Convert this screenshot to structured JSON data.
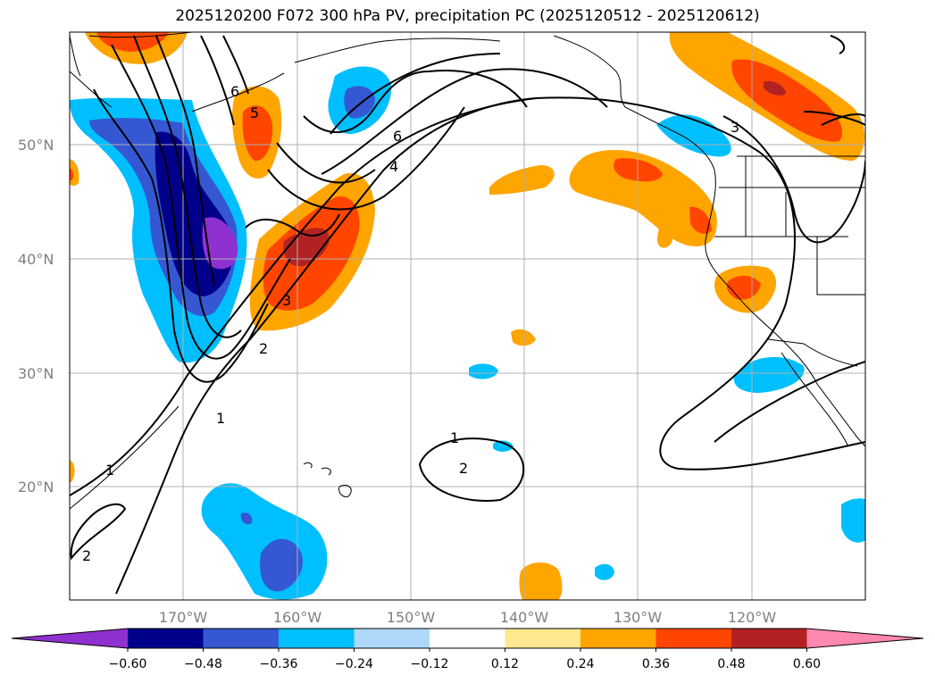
{
  "title": "2025120200 F072 300 hPa PV, precipitation PC (2025120512 - 2025120612)",
  "map": {
    "lat_labels": [
      "50°N",
      "40°N",
      "30°N",
      "20°N"
    ],
    "lon_labels": [
      "170°W",
      "160°W",
      "150°W",
      "140°W",
      "130°W",
      "120°W"
    ],
    "pv_contour_labels": [
      "6",
      "5",
      "3",
      "6",
      "4",
      "2",
      "1",
      "1",
      "2",
      "1",
      "2",
      "3"
    ]
  },
  "colorbar": {
    "ticks": [
      "−0.60",
      "−0.48",
      "−0.36",
      "−0.24",
      "−0.12",
      "0.12",
      "0.24",
      "0.36",
      "0.48",
      "0.60"
    ],
    "colors": [
      "#8f30d0",
      "#00008b",
      "#3558d2",
      "#00bfff",
      "#add8f9",
      "#ffffff",
      "#ffe890",
      "#ffa500",
      "#ff4500",
      "#b22222",
      "#ff88b0"
    ]
  }
}
